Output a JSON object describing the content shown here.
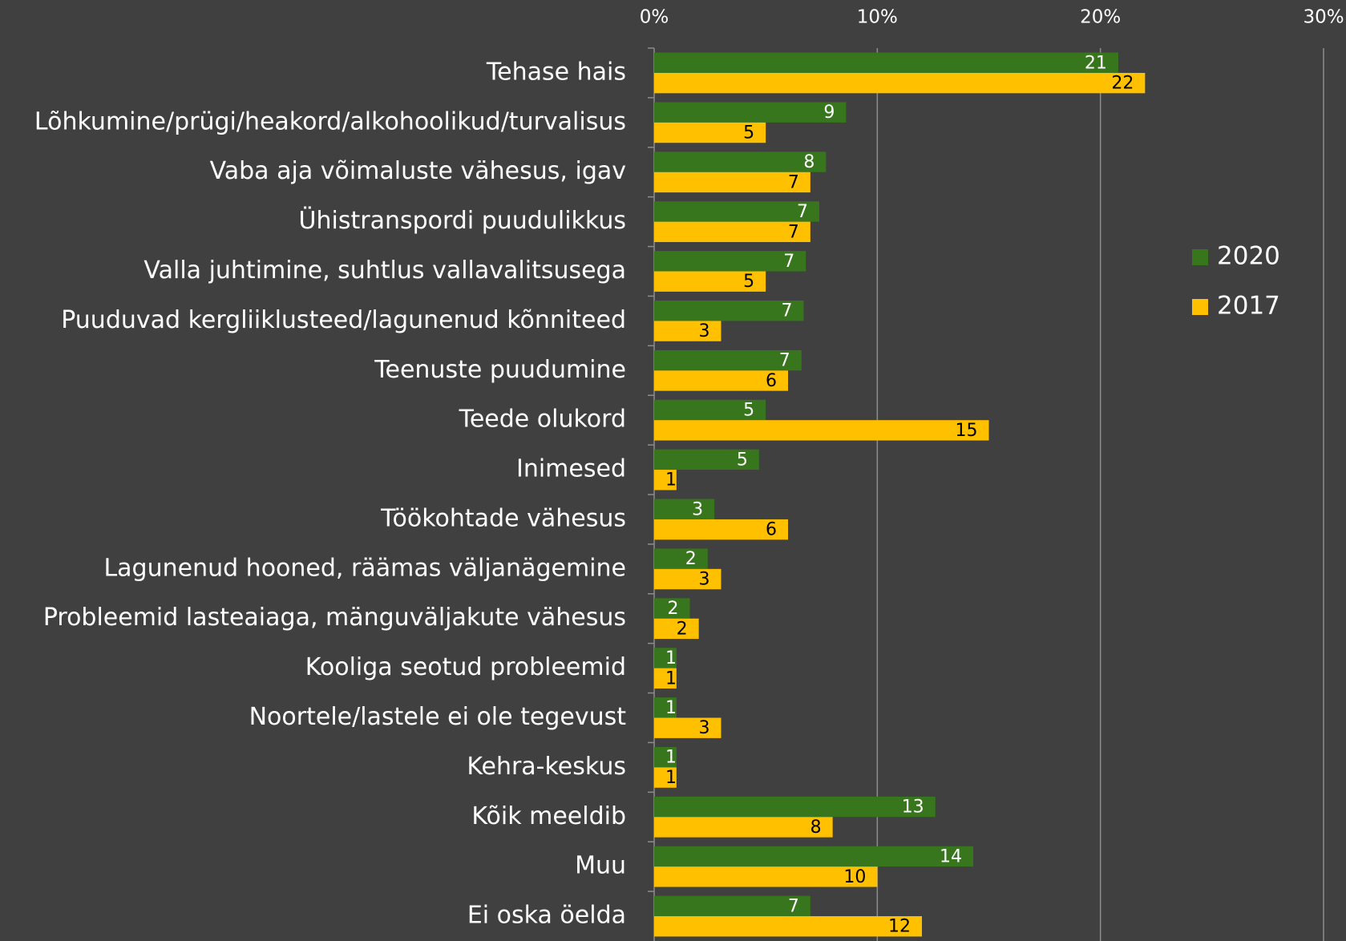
{
  "chart_data": {
    "type": "hbar",
    "categories": [
      "Tehase hais",
      "Lõhkumine/prügi/heakord/alkohoolikud/turvalisus",
      "Vaba aja võimaluste vähesus, igav",
      "Ühistranspordi puudulikkus",
      "Valla juhtimine, suhtlus vallavalitsusega",
      "Puuduvad kergliiklusteed/lagunenud kõnniteed",
      "Teenuste puudumine",
      "Teede olukord",
      "Inimesed",
      "Töökohtade vähesus",
      "Lagunenud hooned, räämas väljanägemine",
      "Probleemid lasteaiaga, mänguväljakute vähesus",
      "Kooliga seotud probleemid",
      "Noortele/lastele ei ole tegevust",
      "Kehra-keskus",
      "Kõik meeldib",
      "Muu",
      "Ei oska öelda"
    ],
    "series": [
      {
        "name": "2020",
        "color": "#38761d",
        "label_color": "#ffffff",
        "values": [
          20.8,
          8.6,
          7.7,
          7.4,
          6.8,
          6.7,
          6.6,
          5.0,
          4.7,
          2.7,
          2.4,
          1.6,
          1.0,
          1.0,
          1.0,
          12.6,
          14.3,
          7.0
        ],
        "value_labels": [
          "21",
          "9",
          "8",
          "7",
          "7",
          "7",
          "7",
          "5",
          "5",
          "3",
          "2",
          "2",
          "1",
          "1",
          "1",
          "13",
          "14",
          "7"
        ]
      },
      {
        "name": "2017",
        "color": "#ffc000",
        "label_color": "#000000",
        "values": [
          22,
          5,
          7,
          7,
          5,
          3,
          6,
          15,
          1,
          6,
          3,
          2,
          1,
          3,
          1,
          8,
          10,
          12
        ]
      }
    ],
    "xlim": [
      0,
      30
    ],
    "xticks": [
      {
        "value": 0,
        "label": "0%"
      },
      {
        "value": 10,
        "label": "10%"
      },
      {
        "value": 20,
        "label": "20%"
      },
      {
        "value": 30,
        "label": "30%"
      }
    ],
    "grid": true,
    "legend": "right"
  }
}
